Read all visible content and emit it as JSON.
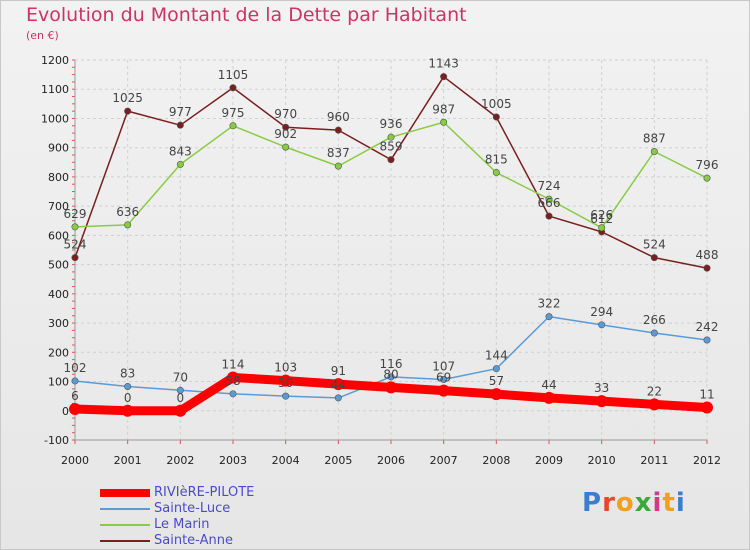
{
  "title": "Evolution du Montant de la Dette par Habitant",
  "subtitle": "(en €)",
  "logo": {
    "text": "Proxiti",
    "colors": [
      "#3a7fcf",
      "#e04a2a",
      "#f0a020",
      "#3aa83a",
      "#d03a8a",
      "#f0a020",
      "#3a7fcf"
    ]
  },
  "chart_data": {
    "type": "line",
    "title": "Evolution du Montant de la Dette par Habitant",
    "ylabel": "(en €)",
    "xlabel": "",
    "x": [
      "2000",
      "2001",
      "2002",
      "2003",
      "2004",
      "2005",
      "2006",
      "2007",
      "2008",
      "2009",
      "2010",
      "2011",
      "2012"
    ],
    "ylim": [
      -100,
      1200
    ],
    "yticks": [
      -100,
      0,
      100,
      200,
      300,
      400,
      500,
      600,
      700,
      800,
      900,
      1000,
      1100,
      1200
    ],
    "grid": true,
    "legend": "bottom-left",
    "series": [
      {
        "name": "Sainte-Anne",
        "color": "#7a1e1e",
        "width": 1.5,
        "values": [
          524,
          1025,
          977,
          1105,
          970,
          960,
          859,
          1143,
          1005,
          666,
          612,
          524,
          488
        ],
        "labels": [
          "524",
          "1025",
          "977",
          "1105",
          "970",
          "960",
          "859",
          "1143",
          "1005",
          "666",
          "612",
          "524",
          "488"
        ]
      },
      {
        "name": "Le Marin",
        "color": "#88cc44",
        "width": 1.5,
        "values": [
          629,
          636,
          843,
          975,
          902,
          837,
          936,
          987,
          815,
          724,
          626,
          887,
          796
        ],
        "labels": [
          "629",
          "636",
          "843",
          "975",
          "902",
          "837",
          "936",
          "987",
          "815",
          "724",
          "626",
          "887",
          "796"
        ]
      },
      {
        "name": "Sainte-Luce",
        "color": "#5b9bd5",
        "width": 1.5,
        "values": [
          102,
          83,
          70,
          58,
          50,
          44,
          116,
          107,
          144,
          322,
          294,
          266,
          242
        ],
        "labels": [
          "102",
          "83",
          "70",
          "58",
          "50",
          "44",
          "116",
          "107",
          "144",
          "322",
          "294",
          "266",
          "242"
        ]
      },
      {
        "name": "RIVIèRE-PILOTE",
        "color": "#ff0000",
        "width": 9,
        "values": [
          6,
          0,
          0,
          114,
          103,
          91,
          80,
          69,
          57,
          44,
          33,
          22,
          11
        ],
        "labels": [
          "6",
          "0",
          "0",
          "114",
          "103",
          "91",
          "80",
          "69",
          "57",
          "44",
          "33",
          "22",
          "11"
        ]
      }
    ],
    "legend_order": [
      "RIVIèRE-PILOTE",
      "Sainte-Luce",
      "Le Marin",
      "Sainte-Anne"
    ]
  }
}
